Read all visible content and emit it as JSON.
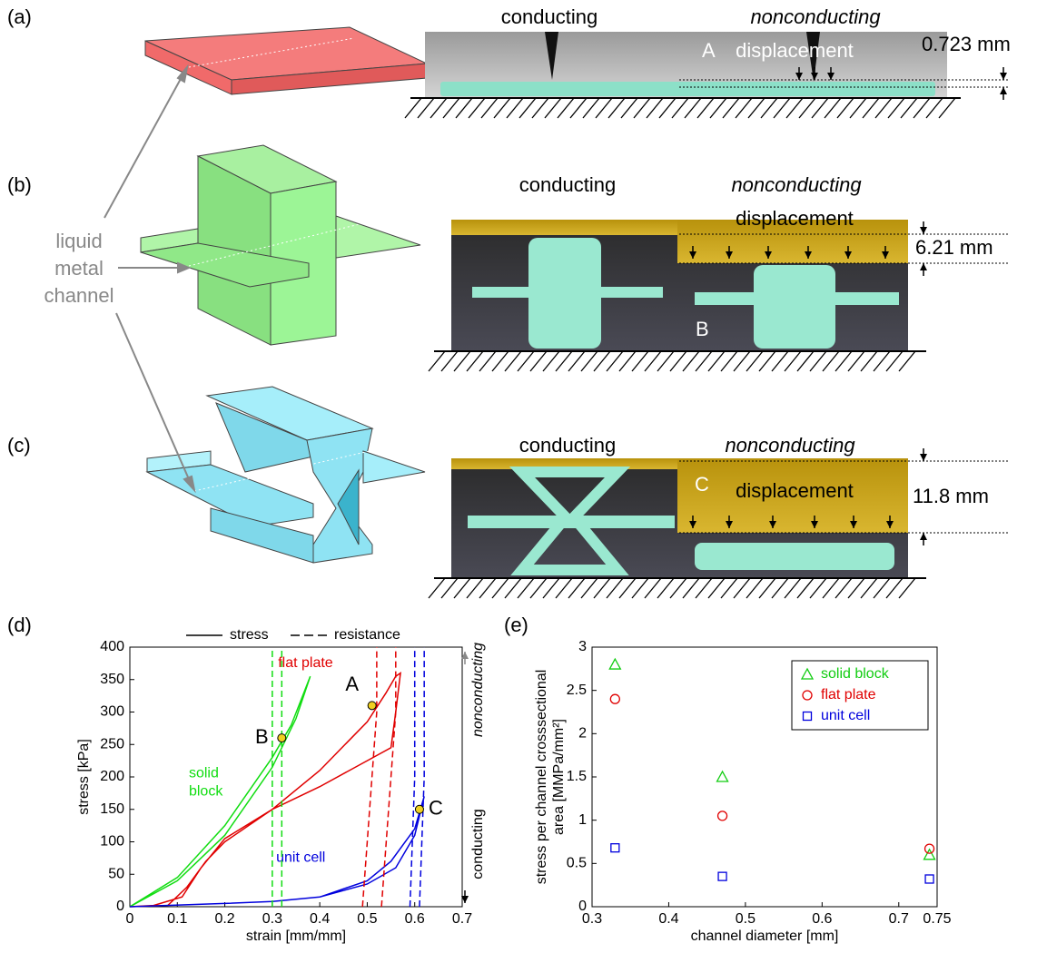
{
  "panels": [
    {
      "label": "(a)",
      "left": "conducting",
      "right": "nonconducting",
      "displacement": "displacement",
      "measure": "0.723 mm",
      "marker": "A"
    },
    {
      "label": "(b)",
      "left": "conducting",
      "right": "nonconducting",
      "displacement": "displacement",
      "measure": "6.21 mm",
      "marker": "B"
    },
    {
      "label": "(c)",
      "left": "conducting",
      "right": "nonconducting",
      "displacement": "displacement",
      "measure": "11.8 mm",
      "marker": "C"
    }
  ],
  "channel_label": [
    "liquid",
    "metal",
    "channel"
  ],
  "chart_data": [
    {
      "type": "line",
      "panel_label": "(d)",
      "x_label": "strain [mm/mm]",
      "y_label": "stress [kPa]",
      "xlim": [
        0,
        0.7
      ],
      "xticks": [
        0,
        0.1,
        0.2,
        0.3,
        0.4,
        0.5,
        0.6,
        0.7
      ],
      "ylim": [
        0,
        400
      ],
      "yticks": [
        0,
        50,
        100,
        150,
        200,
        250,
        300,
        350,
        400
      ],
      "legend": [
        {
          "label": "stress",
          "style": "solid"
        },
        {
          "label": "resistance",
          "style": "dashed"
        }
      ],
      "series": [
        {
          "name": "flat plate",
          "color": "#e00000",
          "style": "solid",
          "label_at": [
            0.37,
            375
          ],
          "x": [
            0,
            0.08,
            0.12,
            0.16,
            0.2,
            0.3,
            0.4,
            0.5,
            0.54,
            0.56,
            0.57,
            0.56,
            0.55,
            0.5,
            0.4,
            0.3,
            0.2,
            0.15,
            0.11,
            0.05,
            0
          ],
          "values": [
            0,
            2,
            30,
            70,
            100,
            150,
            210,
            285,
            330,
            355,
            360,
            300,
            245,
            225,
            185,
            150,
            105,
            60,
            15,
            2,
            0
          ]
        },
        {
          "name": "solid block",
          "color": "#11dd11",
          "style": "solid",
          "label_at": [
            0.16,
            205
          ],
          "x": [
            0,
            0.1,
            0.2,
            0.3,
            0.35,
            0.38,
            0.34,
            0.3,
            0.2,
            0.1,
            0
          ],
          "values": [
            0,
            40,
            110,
            215,
            290,
            355,
            280,
            230,
            125,
            45,
            0
          ]
        },
        {
          "name": "unit cell",
          "color": "#0000dd",
          "style": "solid",
          "label_at": [
            0.36,
            75
          ],
          "x": [
            0,
            0.2,
            0.3,
            0.4,
            0.5,
            0.56,
            0.6,
            0.62,
            0.6,
            0.55,
            0.5,
            0.4,
            0.3,
            0.2,
            0
          ],
          "values": [
            0,
            5,
            8,
            15,
            35,
            60,
            110,
            170,
            120,
            70,
            40,
            15,
            8,
            5,
            0
          ]
        },
        {
          "color": "#e00000",
          "style": "dashed",
          "x": [
            0.49,
            0.5,
            0.51,
            0.52,
            0.52
          ],
          "values": [
            0,
            100,
            200,
            300,
            400
          ]
        },
        {
          "color": "#e00000",
          "style": "dashed",
          "x": [
            0.53,
            0.54,
            0.55,
            0.56,
            0.56
          ],
          "values": [
            0,
            100,
            200,
            300,
            400
          ]
        },
        {
          "color": "#11dd11",
          "style": "dashed",
          "x": [
            0.3,
            0.3
          ],
          "values": [
            0,
            400
          ]
        },
        {
          "color": "#11dd11",
          "style": "dashed",
          "x": [
            0.32,
            0.32
          ],
          "values": [
            0,
            400
          ]
        },
        {
          "color": "#0000dd",
          "style": "dashed",
          "x": [
            0.59,
            0.6,
            0.6
          ],
          "values": [
            0,
            200,
            400
          ]
        },
        {
          "color": "#0000dd",
          "style": "dashed",
          "x": [
            0.61,
            0.62,
            0.62
          ],
          "values": [
            0,
            200,
            400
          ]
        }
      ],
      "points": [
        {
          "label": "A",
          "x": 0.51,
          "y": 310
        },
        {
          "label": "B",
          "x": 0.32,
          "y": 260
        },
        {
          "label": "C",
          "x": 0.61,
          "y": 150
        }
      ],
      "side_labels": [
        "nonconducting",
        "conducting"
      ]
    },
    {
      "type": "scatter",
      "panel_label": "(e)",
      "x_label": "channel diameter [mm]",
      "y_label": [
        "stress per channel crosssectional",
        "area [MMPa/mm²]"
      ],
      "xlim": [
        0.3,
        0.75
      ],
      "xticks": [
        0.3,
        0.4,
        0.5,
        0.6,
        0.7,
        0.75
      ],
      "ylim": [
        0,
        3
      ],
      "yticks": [
        0,
        0.5,
        1,
        1.5,
        2,
        2.5,
        3
      ],
      "legend_position": "upper right",
      "x": [
        0.33,
        0.47,
        0.74
      ],
      "series": [
        {
          "name": "solid block",
          "color": "#11cc11",
          "marker": "triangle",
          "values": [
            2.8,
            1.5,
            0.6
          ]
        },
        {
          "name": "flat plate",
          "color": "#e00000",
          "marker": "circle",
          "values": [
            2.4,
            1.05,
            0.67
          ]
        },
        {
          "name": "unit cell",
          "color": "#0000dd",
          "marker": "square",
          "values": [
            0.68,
            0.35,
            0.32
          ]
        }
      ]
    }
  ]
}
